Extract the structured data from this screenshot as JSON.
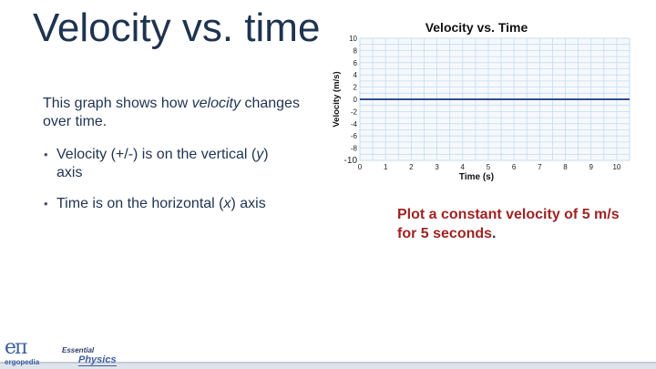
{
  "slide": {
    "title": "Velocity vs. time",
    "intro_part1": "This graph shows how ",
    "intro_em": "velocity",
    "intro_part2": " changes over time.",
    "bullets": [
      {
        "a": "Velocity (+/-) is on the vertical (",
        "it": "y",
        "b": ") axis"
      },
      {
        "a": "Time is on the horizontal (",
        "it": "x",
        "b": ") axis"
      }
    ],
    "bullet_marker": "•",
    "task_text": "Plot a constant velocity of 5 m/s for 5 seconds",
    "task_period": "."
  },
  "logo": {
    "symbol": "eπ",
    "name": "ergopedia",
    "brand_small": "Essential",
    "brand_big": "Physics"
  },
  "chart_data": {
    "type": "line",
    "title": "Velocity vs. Time",
    "xlabel": "Time (s)",
    "ylabel": "Velocity (m/s)",
    "xlim": [
      0,
      10.5
    ],
    "ylim": [
      -10,
      10
    ],
    "xticks": [
      0,
      1,
      2,
      3,
      4,
      5,
      6,
      7,
      8,
      9,
      10
    ],
    "yticks": [
      10,
      8,
      6,
      4,
      2,
      0,
      -2,
      -4,
      -6,
      -8,
      -10
    ],
    "grid": true,
    "series": [
      {
        "x": [
          0,
          10.5
        ],
        "y": [
          0,
          0
        ],
        "color": "#2f4e91"
      }
    ],
    "colors": {
      "grid": "#c4dcf0",
      "plot_bg": "#f6f9fc",
      "axis_text": "#222222"
    }
  }
}
